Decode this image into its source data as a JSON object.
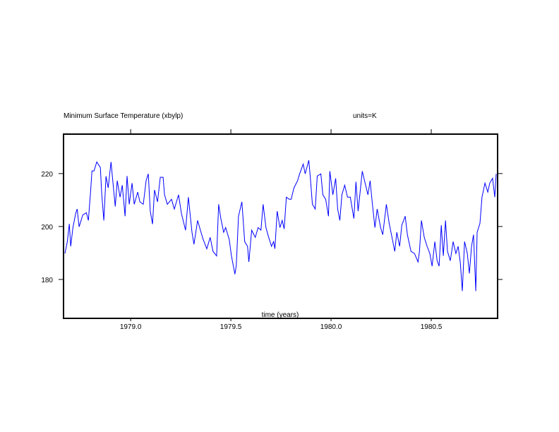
{
  "chart_data": {
    "type": "line",
    "title": "Minimum Surface Temperature (xbylp)",
    "units_label": "units=K",
    "xlabel": "time (years)",
    "ylabel": "",
    "xlim": [
      1978.665,
      1980.831
    ],
    "ylim": [
      165.3,
      234.9
    ],
    "xticks": [
      1979.0,
      1979.5,
      1980.0,
      1980.5
    ],
    "xtick_labels": [
      "1979.0",
      "1979.5",
      "1980.0",
      "1980.5"
    ],
    "yticks": [
      180,
      200,
      220
    ],
    "ytick_labels": [
      "180",
      "200",
      "220"
    ],
    "grid": false,
    "series": [
      {
        "name": "Minimum Surface Temperature",
        "color": "#0000ff",
        "x": [
          1978.672,
          1978.684,
          1978.694,
          1978.701,
          1978.712,
          1978.726,
          1978.733,
          1978.743,
          1978.761,
          1978.779,
          1978.789,
          1978.8,
          1978.807,
          1978.817,
          1978.831,
          1978.849,
          1978.856,
          1978.866,
          1978.877,
          1978.888,
          1978.902,
          1978.912,
          1978.923,
          1978.933,
          1978.947,
          1978.958,
          1978.972,
          1978.982,
          1978.993,
          1979.007,
          1979.018,
          1979.035,
          1979.046,
          1979.063,
          1979.077,
          1979.088,
          1979.098,
          1979.109,
          1979.119,
          1979.134,
          1979.148,
          1979.162,
          1979.169,
          1979.183,
          1979.204,
          1979.218,
          1979.239,
          1979.253,
          1979.274,
          1979.288,
          1979.306,
          1979.316,
          1979.334,
          1979.348,
          1979.362,
          1979.38,
          1979.397,
          1979.411,
          1979.429,
          1979.439,
          1979.45,
          1979.464,
          1979.474,
          1979.492,
          1979.503,
          1979.52,
          1979.527,
          1979.538,
          1979.555,
          1979.569,
          1979.583,
          1979.59,
          1979.604,
          1979.622,
          1979.636,
          1979.65,
          1979.661,
          1979.675,
          1979.689,
          1979.703,
          1979.713,
          1979.72,
          1979.731,
          1979.745,
          1979.756,
          1979.766,
          1979.777,
          1979.791,
          1979.801,
          1979.815,
          1979.833,
          1979.843,
          1979.861,
          1979.871,
          1979.889,
          1979.896,
          1979.907,
          1979.921,
          1979.931,
          1979.949,
          1979.959,
          1979.973,
          1979.987,
          1979.994,
          1980.009,
          1980.023,
          1980.033,
          1980.044,
          1980.054,
          1980.068,
          1980.082,
          1980.096,
          1980.114,
          1980.124,
          1980.135,
          1980.156,
          1980.17,
          1980.184,
          1980.195,
          1980.205,
          1980.219,
          1980.23,
          1980.247,
          1980.258,
          1980.276,
          1980.29,
          1980.304,
          1980.318,
          1980.328,
          1980.342,
          1980.353,
          1980.37,
          1980.381,
          1980.399,
          1980.416,
          1980.434,
          1980.441,
          1980.451,
          1980.465,
          1980.479,
          1980.493,
          1980.504,
          1980.518,
          1980.529,
          1980.539,
          1980.55,
          1980.56,
          1980.571,
          1980.581,
          1980.595,
          1980.609,
          1980.623,
          1980.634,
          1980.645,
          1980.655,
          1980.666,
          1980.68,
          1980.69,
          1980.701,
          1980.711,
          1980.722,
          1980.729,
          1980.743,
          1980.753,
          1980.768,
          1980.782,
          1980.792,
          1980.806,
          1980.817,
          1980.824
        ],
        "y": [
          189.8,
          194.3,
          201.0,
          192.5,
          199.6,
          205.0,
          206.6,
          199.9,
          204.4,
          205.2,
          202.3,
          213.0,
          221.0,
          221.0,
          224.4,
          222.3,
          212.0,
          202.3,
          219.0,
          214.6,
          224.4,
          216.4,
          207.6,
          217.3,
          211.1,
          215.6,
          203.9,
          219.1,
          208.4,
          216.4,
          208.4,
          213.0,
          209.3,
          208.4,
          217.3,
          219.9,
          205.8,
          200.9,
          213.8,
          209.3,
          218.6,
          218.6,
          212.0,
          208.4,
          210.3,
          206.6,
          212.0,
          205.0,
          198.6,
          211.1,
          197.8,
          193.3,
          202.3,
          198.6,
          195.1,
          191.6,
          195.9,
          190.6,
          188.9,
          208.4,
          203.0,
          197.8,
          199.6,
          195.1,
          188.9,
          182.0,
          185.3,
          203.9,
          209.3,
          194.3,
          192.5,
          186.6,
          198.6,
          195.9,
          199.6,
          198.6,
          208.4,
          199.6,
          195.9,
          192.5,
          194.3,
          191.6,
          205.8,
          199.6,
          202.3,
          199.1,
          211.1,
          210.3,
          210.3,
          214.6,
          217.3,
          219.9,
          223.6,
          219.9,
          225.0,
          219.1,
          208.4,
          206.6,
          219.1,
          219.9,
          212.0,
          210.3,
          203.9,
          220.9,
          212.0,
          218.2,
          206.6,
          202.3,
          212.0,
          215.6,
          211.1,
          211.1,
          203.0,
          216.9,
          205.8,
          220.9,
          216.4,
          212.0,
          217.3,
          209.3,
          199.6,
          206.6,
          199.6,
          196.9,
          208.4,
          201.2,
          195.9,
          190.6,
          197.8,
          192.5,
          200.5,
          203.9,
          196.9,
          190.6,
          189.8,
          186.6,
          190.6,
          202.3,
          195.9,
          192.5,
          189.8,
          185.0,
          194.3,
          187.1,
          185.0,
          200.5,
          188.9,
          202.3,
          190.6,
          187.1,
          194.3,
          189.8,
          192.5,
          186.3,
          175.6,
          194.3,
          189.8,
          182.3,
          192.5,
          196.9,
          175.6,
          197.8,
          201.2,
          211.1,
          216.4,
          213.0,
          216.4,
          218.2,
          211.1,
          219.9
        ]
      }
    ]
  }
}
